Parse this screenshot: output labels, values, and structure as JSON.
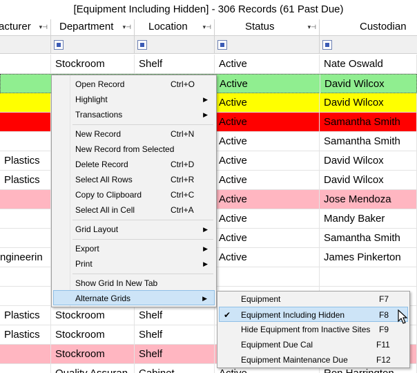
{
  "title": "[Equipment Including Hidden] - 306 Records (61 Past Due)",
  "columns": [
    {
      "label": "acturer"
    },
    {
      "label": "Department"
    },
    {
      "label": "Location"
    },
    {
      "label": "Status"
    },
    {
      "label": "Custodian"
    }
  ],
  "rows": [
    {
      "cells": [
        "",
        "Stockroom",
        "Shelf",
        "Active",
        "Nate Oswald"
      ]
    },
    {
      "cells": [
        "",
        "",
        "",
        "Active",
        "David Wilcox"
      ]
    },
    {
      "cells": [
        "",
        "",
        "",
        "Active",
        "David Wilcox"
      ]
    },
    {
      "cells": [
        "",
        "",
        "",
        "Active",
        "Samantha Smith"
      ]
    },
    {
      "cells": [
        "",
        "",
        "",
        "Active",
        "Samantha Smith"
      ]
    },
    {
      "cells": [
        "Plastics",
        "",
        "",
        "Active",
        "David Wilcox"
      ]
    },
    {
      "cells": [
        "Plastics",
        "",
        "",
        "Active",
        "David Wilcox"
      ]
    },
    {
      "cells": [
        "",
        "",
        "",
        "Active",
        "Jose Mendoza"
      ]
    },
    {
      "cells": [
        "",
        "",
        "",
        "Active",
        "Mandy Baker"
      ]
    },
    {
      "cells": [
        "",
        "",
        "",
        "Active",
        "Samantha Smith"
      ]
    },
    {
      "cells": [
        "ngineerin",
        "",
        "",
        "Active",
        "James Pinkerton"
      ]
    },
    {
      "cells": [
        "",
        "",
        "",
        "",
        ""
      ]
    },
    {
      "cells": [
        "",
        "",
        "",
        "",
        ""
      ]
    },
    {
      "cells": [
        "Plastics",
        "Stockroom",
        "Shelf",
        "",
        ""
      ]
    },
    {
      "cells": [
        "Plastics",
        "Stockroom",
        "Shelf",
        "",
        ""
      ]
    },
    {
      "cells": [
        "",
        "Stockroom",
        "Shelf",
        "",
        ""
      ]
    },
    {
      "cells": [
        "",
        "Quality Assuran",
        "Cabinet",
        "Active",
        "Ron Harrington"
      ]
    }
  ],
  "row_colors": {
    "green": "#90ee90",
    "yellow": "#ffff00",
    "red": "#ff0000",
    "pink": "#ffb6c1",
    "white": "#ffffff"
  },
  "context_menu": {
    "items": [
      {
        "label": "Open Record",
        "shortcut": "Ctrl+O"
      },
      {
        "label": "Highlight",
        "submenu": true
      },
      {
        "label": "Transactions",
        "submenu": true
      },
      {
        "label": "New Record",
        "shortcut": "Ctrl+N"
      },
      {
        "label": "New Record from Selected"
      },
      {
        "label": "Delete Record",
        "shortcut": "Ctrl+D"
      },
      {
        "label": "Select All Rows",
        "shortcut": "Ctrl+R"
      },
      {
        "label": "Copy to Clipboard",
        "shortcut": "Ctrl+C"
      },
      {
        "label": "Select All in Cell",
        "shortcut": "Ctrl+A"
      },
      {
        "label": "Grid Layout",
        "submenu": true
      },
      {
        "label": "Export",
        "submenu": true
      },
      {
        "label": "Print",
        "submenu": true
      },
      {
        "label": "Show Grid In New Tab"
      },
      {
        "label": "Alternate Grids",
        "submenu": true
      }
    ]
  },
  "submenu": {
    "items": [
      {
        "label": "Equipment",
        "shortcut": "F7"
      },
      {
        "label": "Equipment Including Hidden",
        "shortcut": "F8",
        "checked": true
      },
      {
        "label": "Hide Equipment from Inactive Sites",
        "shortcut": "F9"
      },
      {
        "label": "Equipment Due Cal",
        "shortcut": "F11"
      },
      {
        "label": "Equipment Maintenance Due",
        "shortcut": "F12"
      }
    ]
  },
  "icons": {
    "submenu_arrow": "chevron-right-icon",
    "pin": "pin-icon",
    "dropdown": "dropdown-icon",
    "filter": "filter-checkbox-icon",
    "check": "check-icon",
    "cursor": "mouse-pointer-icon"
  },
  "colors": {
    "menu_highlight": "#cde4f7",
    "menu_background": "#f2f2f2"
  }
}
